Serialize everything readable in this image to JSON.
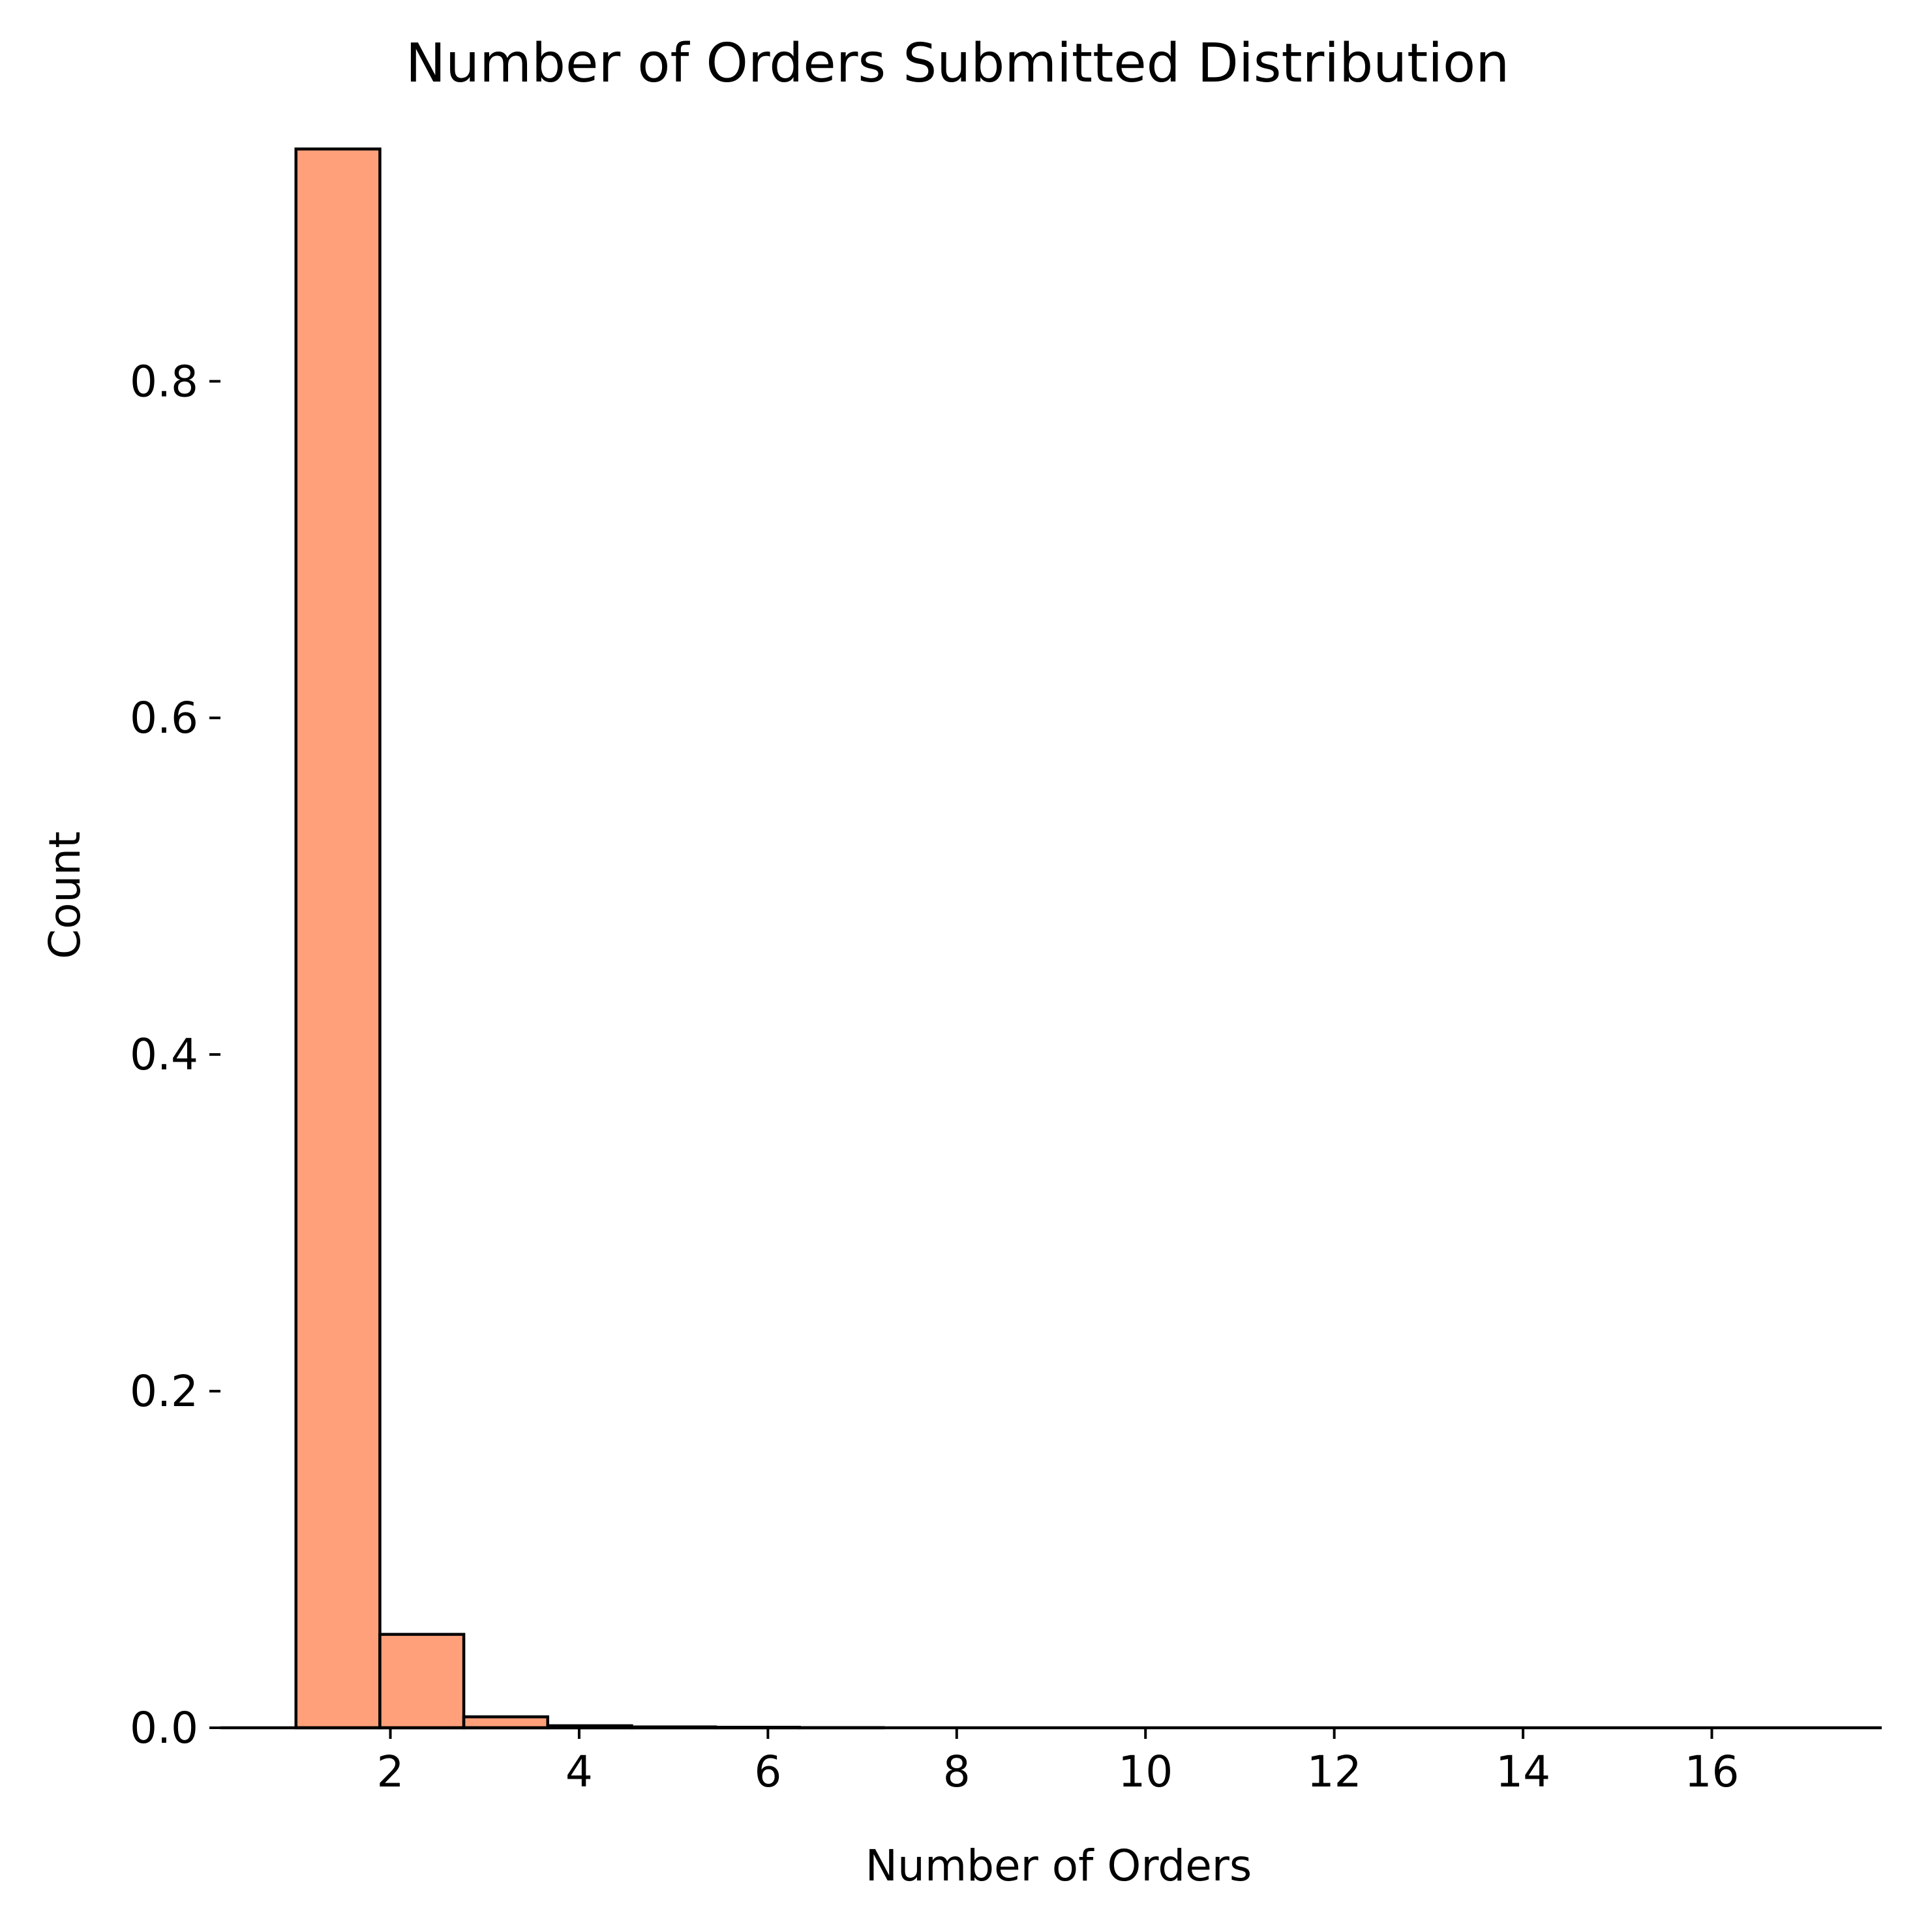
{
  "chart_data": {
    "type": "bar",
    "title": "Number of Orders Submitted Distribution",
    "xlabel": "Number of Orders",
    "ylabel": "Count",
    "bins": [
      {
        "start": 1.0,
        "end": 1.889,
        "value": 0.938
      },
      {
        "start": 1.889,
        "end": 2.778,
        "value": 0.0555
      },
      {
        "start": 2.778,
        "end": 3.667,
        "value": 0.0065
      },
      {
        "start": 3.667,
        "end": 4.556,
        "value": 0.0012
      },
      {
        "start": 4.556,
        "end": 5.444,
        "value": 0.0005
      },
      {
        "start": 5.444,
        "end": 6.333,
        "value": 0.0003
      },
      {
        "start": 6.333,
        "end": 7.222,
        "value": 0.0001
      },
      {
        "start": 7.222,
        "end": 8.111,
        "value": 0.0
      },
      {
        "start": 8.111,
        "end": 9.0,
        "value": 0.0
      },
      {
        "start": 9.0,
        "end": 9.889,
        "value": 0.0
      },
      {
        "start": 9.889,
        "end": 10.778,
        "value": 0.0
      },
      {
        "start": 10.778,
        "end": 11.667,
        "value": 0.0
      },
      {
        "start": 11.667,
        "end": 12.556,
        "value": 0.0
      },
      {
        "start": 12.556,
        "end": 13.444,
        "value": 0.0
      },
      {
        "start": 13.444,
        "end": 14.333,
        "value": 0.0
      },
      {
        "start": 14.333,
        "end": 15.222,
        "value": 0.0
      },
      {
        "start": 15.222,
        "end": 16.111,
        "value": 0.0
      },
      {
        "start": 16.111,
        "end": 17.0,
        "value": 0.0
      }
    ],
    "xlim": [
      0.2,
      17.8
    ],
    "ylim": [
      0.0,
      0.98
    ],
    "xticks": [
      2,
      4,
      6,
      8,
      10,
      12,
      14,
      16
    ],
    "xtick_labels": [
      "2",
      "4",
      "6",
      "8",
      "10",
      "12",
      "14",
      "16"
    ],
    "yticks": [
      0.0,
      0.2,
      0.4,
      0.6,
      0.8
    ],
    "ytick_labels": [
      "0.0",
      "0.2",
      "0.4",
      "0.6",
      "0.8"
    ],
    "bar_color": "#ffa07a",
    "edge_color": "#000000",
    "grid": false,
    "legend": "none"
  }
}
